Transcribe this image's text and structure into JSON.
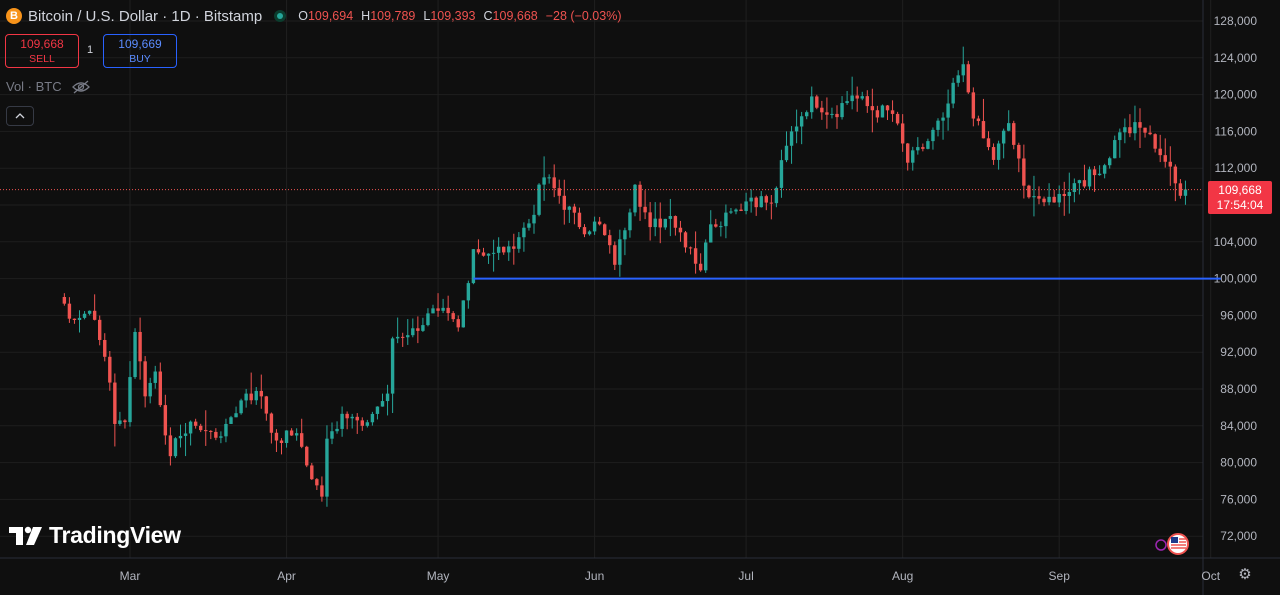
{
  "header": {
    "coin_icon": "B",
    "title": "Bitcoin / U.S. Dollar · 1D · Bitstamp",
    "status_icon": "market-open-dot",
    "ohlc": [
      {
        "k": "O",
        "v": "109,694"
      },
      {
        "k": "H",
        "v": "109,789"
      },
      {
        "k": "L",
        "v": "109,393"
      },
      {
        "k": "C",
        "v": "109,668"
      },
      {
        "k": "",
        "v": "−28 (−0.03%)"
      }
    ]
  },
  "trade": {
    "sell_price": "109,668",
    "sell_label": "SELL",
    "spread": "1",
    "buy_price": "109,669",
    "buy_label": "BUY"
  },
  "volume": {
    "label": "Vol · BTC",
    "icon": "eye-off-icon"
  },
  "collapse_icon": "chevron-up-icon",
  "logo": {
    "text": "TradingView"
  },
  "price_tag": {
    "price": "109,668",
    "countdown": "17:54:04"
  },
  "colors": {
    "up": "#26a69a",
    "down": "#ef5350",
    "level": "#2962ff",
    "bg": "#0f0f0f",
    "grid": "#1f1f1f"
  },
  "chart_data": {
    "type": "candlestick",
    "y_axis": {
      "ticks": [
        72000,
        76000,
        80000,
        84000,
        88000,
        92000,
        96000,
        100000,
        104000,
        108000,
        112000,
        116000,
        120000,
        124000,
        128000
      ],
      "tick_labels": [
        "72,000",
        "76,000",
        "80,000",
        "84,000",
        "88,000",
        "92,000",
        "96,000",
        "100,000",
        "104,000",
        "108,000",
        "112,000",
        "116,000",
        "120,000",
        "124,000",
        "128,000"
      ],
      "range": [
        70000,
        129500
      ]
    },
    "x_axis": {
      "labels": [
        "Mar",
        "Apr",
        "May",
        "Jun",
        "Jul",
        "Aug",
        "Sep",
        "Oct"
      ]
    },
    "horizontal_level": {
      "price": 100000,
      "from": "2025-05-08",
      "to": "2025-10-01"
    },
    "current_price_line": 109668,
    "candles": [
      {
        "date": "2025-02-15",
        "close": 98000
      },
      {
        "date": "2025-02-18",
        "close": 95500
      },
      {
        "date": "2025-02-21",
        "close": 96500
      },
      {
        "date": "2025-02-24",
        "close": 91500
      },
      {
        "date": "2025-02-25",
        "close": 88700
      },
      {
        "date": "2025-02-26",
        "close": 84200
      },
      {
        "date": "2025-02-28",
        "close": 84400
      },
      {
        "date": "2025-03-02",
        "close": 94200
      },
      {
        "date": "2025-03-04",
        "close": 87200
      },
      {
        "date": "2025-03-06",
        "close": 89900
      },
      {
        "date": "2025-03-09",
        "close": 80700
      },
      {
        "date": "2025-03-11",
        "close": 82900
      },
      {
        "date": "2025-03-14",
        "close": 84000
      },
      {
        "date": "2025-03-18",
        "close": 82700
      },
      {
        "date": "2025-03-20",
        "close": 84200
      },
      {
        "date": "2025-03-24",
        "close": 87500
      },
      {
        "date": "2025-03-27",
        "close": 87200
      },
      {
        "date": "2025-03-30",
        "close": 82400
      },
      {
        "date": "2025-04-03",
        "close": 83200
      },
      {
        "date": "2025-04-06",
        "close": 78200
      },
      {
        "date": "2025-04-08",
        "close": 76300
      },
      {
        "date": "2025-04-09",
        "close": 82600
      },
      {
        "date": "2025-04-12",
        "close": 85300
      },
      {
        "date": "2025-04-16",
        "close": 84000
      },
      {
        "date": "2025-04-21",
        "close": 87500
      },
      {
        "date": "2025-04-22",
        "close": 93500
      },
      {
        "date": "2025-04-26",
        "close": 94600
      },
      {
        "date": "2025-05-01",
        "close": 96500
      },
      {
        "date": "2025-05-05",
        "close": 94700
      },
      {
        "date": "2025-05-08",
        "close": 103200
      },
      {
        "date": "2025-05-12",
        "close": 102800
      },
      {
        "date": "2025-05-15",
        "close": 103500
      },
      {
        "date": "2025-05-19",
        "close": 106000
      },
      {
        "date": "2025-05-22",
        "close": 111000
      },
      {
        "date": "2025-05-25",
        "close": 109000
      },
      {
        "date": "2025-05-29",
        "close": 105600
      },
      {
        "date": "2025-06-02",
        "close": 105900
      },
      {
        "date": "2025-06-05",
        "close": 101500
      },
      {
        "date": "2025-06-09",
        "close": 110200
      },
      {
        "date": "2025-06-12",
        "close": 105600
      },
      {
        "date": "2025-06-16",
        "close": 106800
      },
      {
        "date": "2025-06-20",
        "close": 103300
      },
      {
        "date": "2025-06-22",
        "close": 100900
      },
      {
        "date": "2025-06-24",
        "close": 105900
      },
      {
        "date": "2025-06-28",
        "close": 107300
      },
      {
        "date": "2025-07-02",
        "close": 108800
      },
      {
        "date": "2025-07-06",
        "close": 108200
      },
      {
        "date": "2025-07-10",
        "close": 116000
      },
      {
        "date": "2025-07-14",
        "close": 119800
      },
      {
        "date": "2025-07-18",
        "close": 117900
      },
      {
        "date": "2025-07-22",
        "close": 119900
      },
      {
        "date": "2025-07-26",
        "close": 118300
      },
      {
        "date": "2025-07-30",
        "close": 117900
      },
      {
        "date": "2025-08-02",
        "close": 112600
      },
      {
        "date": "2025-08-05",
        "close": 114100
      },
      {
        "date": "2025-08-09",
        "close": 117500
      },
      {
        "date": "2025-08-13",
        "close": 123300
      },
      {
        "date": "2025-08-15",
        "close": 117400
      },
      {
        "date": "2025-08-19",
        "close": 112900
      },
      {
        "date": "2025-08-22",
        "close": 116900
      },
      {
        "date": "2025-08-25",
        "close": 110100
      },
      {
        "date": "2025-08-29",
        "close": 108300
      },
      {
        "date": "2025-09-01",
        "close": 109200
      },
      {
        "date": "2025-09-05",
        "close": 110700
      },
      {
        "date": "2025-09-09",
        "close": 111400
      },
      {
        "date": "2025-09-13",
        "close": 115900
      },
      {
        "date": "2025-09-17",
        "close": 116400
      },
      {
        "date": "2025-09-19",
        "close": 115700
      },
      {
        "date": "2025-09-22",
        "close": 112700
      },
      {
        "date": "2025-09-25",
        "close": 109000
      },
      {
        "date": "2025-09-26",
        "close": 109694
      }
    ]
  }
}
